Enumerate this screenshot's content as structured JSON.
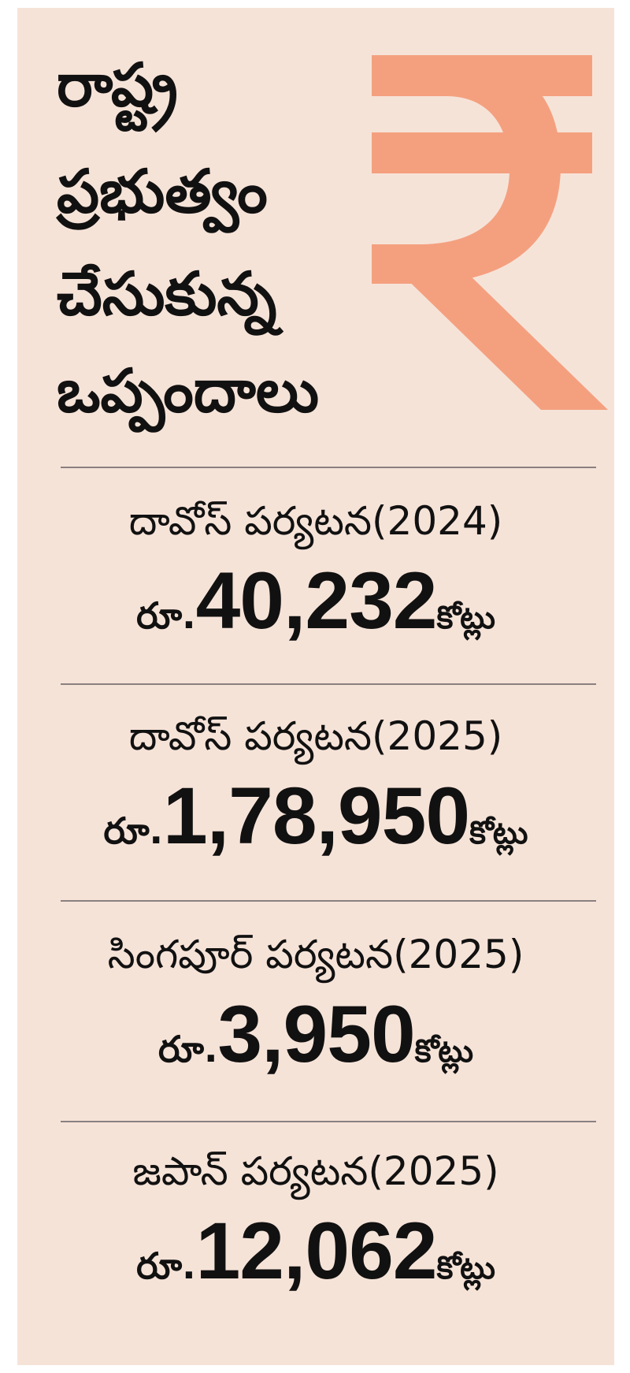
{
  "title_lines": [
    "రాష్ట్ర",
    "ప్రభుత్వం",
    "చేసుకున్న",
    "ఒప్పందాలు"
  ],
  "icon": "rupee-icon",
  "accent_color": "#f4a07f",
  "background_color": "#f6e3d8",
  "agreements": [
    {
      "trip": "దావోస్ పర్యటన(2024)",
      "prefix": "రూ.",
      "amount": "40,232",
      "unit": "కోట్లు"
    },
    {
      "trip": "దావోస్ పర్యటన(2025)",
      "prefix": "రూ.",
      "amount": "1,78,950",
      "unit": "కోట్లు"
    },
    {
      "trip": "సింగపూర్ పర్యటన(2025)",
      "prefix": "రూ.",
      "amount": "3,950",
      "unit": "కోట్లు"
    },
    {
      "trip": "జపాన్ పర్యటన(2025)",
      "prefix": "రూ.",
      "amount": "12,062",
      "unit": "కోట్లు"
    }
  ]
}
